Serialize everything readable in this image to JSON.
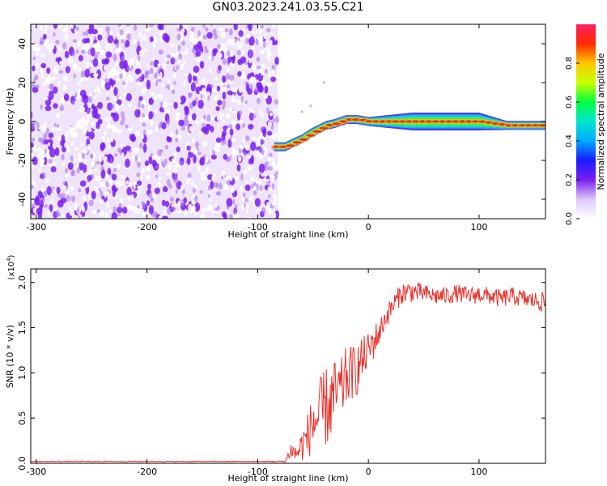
{
  "title": "GN03.2023.241.03.55.C21",
  "colors": {
    "snr_line": "#e8302a",
    "spec_scatter": "#7a1ff0",
    "colormap": [
      "#ffffff",
      "#dcc8fa",
      "#7a1ff0",
      "#1a1aff",
      "#00aaff",
      "#00e5d0",
      "#00ff40",
      "#c8ff00",
      "#ffc800",
      "#ff2a00",
      "#ff1e64"
    ]
  },
  "chart_data": [
    {
      "type": "heatmap",
      "title": "GN03.2023.241.03.55.C21",
      "xlabel": "Height of straight line (km)",
      "ylabel": "Frequency (Hz)",
      "xlim": [
        -305,
        160
      ],
      "ylim": [
        -50,
        50
      ],
      "xticks": [
        -300,
        -200,
        -100,
        0,
        100
      ],
      "yticks": [
        -40,
        -20,
        0,
        20,
        40
      ],
      "colorbar": {
        "label": "Normalized spectral amplitude",
        "range": [
          0,
          1
        ],
        "ticks": [
          "0.0",
          "0.2",
          "0.4",
          "0.6",
          "0.8"
        ]
      },
      "noise_region_x": [
        -305,
        -82
      ],
      "ridge": {
        "x": [
          -85,
          -75,
          -68,
          -60,
          -52,
          -45,
          -38,
          -30,
          -20,
          -10,
          0,
          20,
          40,
          60,
          80,
          100,
          125,
          160
        ],
        "y": [
          -13,
          -13,
          -11,
          -9,
          -6,
          -4,
          -2,
          -1,
          1,
          1,
          0,
          0,
          0,
          0,
          0,
          0,
          -2,
          -2
        ],
        "halo_half_width": [
          2,
          2,
          2,
          2,
          2,
          2,
          2,
          2,
          2,
          2,
          2,
          3,
          4,
          4,
          4,
          4,
          2,
          2
        ]
      }
    },
    {
      "type": "line",
      "xlabel": "Height of straight line (km)",
      "ylabel": "SNR (10 * v/v)",
      "y_multiplier": "(x10",
      "y_exponent": "4",
      "y_multiplier_close": ")",
      "xlim": [
        -305,
        160
      ],
      "ylim": [
        0,
        2.15
      ],
      "xticks": [
        -300,
        -200,
        -100,
        0,
        100
      ],
      "yticks": [
        "0.0",
        "0.5",
        "1.0",
        "1.5",
        "2.0"
      ],
      "series": [
        {
          "x": [
            -305,
            -200,
            -100,
            -75,
            -70,
            -65,
            -60,
            -55,
            -50,
            -45,
            -40,
            -35,
            -30,
            -25,
            -20,
            -15,
            -10,
            -5,
            0,
            5,
            10,
            15,
            20,
            25,
            30,
            35,
            40,
            50,
            60,
            70,
            80,
            90,
            100,
            110,
            120,
            130,
            140,
            150,
            160
          ],
          "mean": [
            0.02,
            0.02,
            0.02,
            0.02,
            0.15,
            0.1,
            0.2,
            0.3,
            0.45,
            0.5,
            0.6,
            0.65,
            0.75,
            0.8,
            0.95,
            1.0,
            1.05,
            1.15,
            1.25,
            1.35,
            1.45,
            1.6,
            1.7,
            1.8,
            1.88,
            1.9,
            1.9,
            1.88,
            1.85,
            1.85,
            1.88,
            1.85,
            1.87,
            1.85,
            1.82,
            1.85,
            1.82,
            1.8,
            1.78
          ],
          "noise": [
            0.005,
            0.005,
            0.005,
            0.01,
            0.1,
            0.1,
            0.18,
            0.25,
            0.35,
            0.4,
            0.45,
            0.45,
            0.4,
            0.35,
            0.35,
            0.3,
            0.3,
            0.25,
            0.2,
            0.2,
            0.15,
            0.12,
            0.12,
            0.12,
            0.12,
            0.12,
            0.12,
            0.1,
            0.1,
            0.1,
            0.1,
            0.1,
            0.1,
            0.1,
            0.1,
            0.1,
            0.1,
            0.1,
            0.12
          ]
        }
      ]
    }
  ]
}
